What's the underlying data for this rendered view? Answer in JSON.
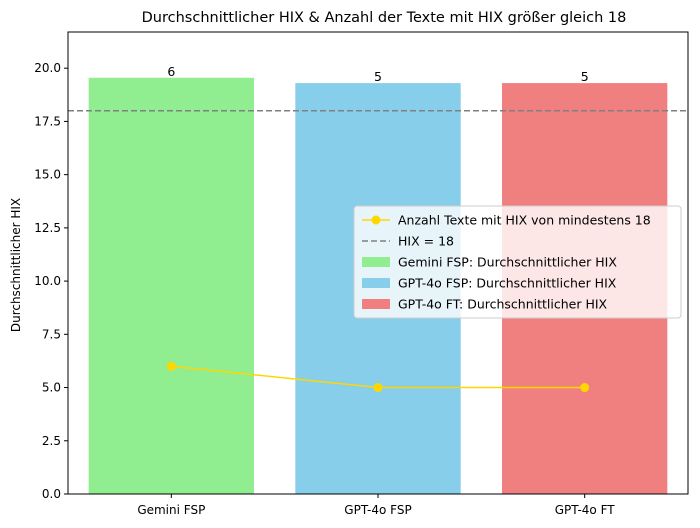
{
  "chart_data": {
    "type": "bar",
    "title": "Durchschnittlicher HIX & Anzahl der Texte mit HIX größer gleich 18",
    "xlabel": "",
    "ylabel": "Durchschnittlicher HIX",
    "ylim": [
      0,
      21.7
    ],
    "yticks": [
      0.0,
      2.5,
      5.0,
      7.5,
      10.0,
      12.5,
      15.0,
      17.5,
      20.0
    ],
    "ytick_labels": [
      "0.0",
      "2.5",
      "5.0",
      "7.5",
      "10.0",
      "12.5",
      "15.0",
      "17.5",
      "20.0"
    ],
    "categories": [
      "Gemini FSP",
      "GPT-4o FSP",
      "GPT-4o FT"
    ],
    "series": [
      {
        "name": "Gemini FSP: Durchschnittlicher HIX",
        "kind": "bar",
        "category": "Gemini FSP",
        "value": 19.55,
        "label": "6",
        "color": "#90ee90"
      },
      {
        "name": "GPT-4o FSP: Durchschnittlicher HIX",
        "kind": "bar",
        "category": "GPT-4o FSP",
        "value": 19.3,
        "label": "5",
        "color": "#87ceeb"
      },
      {
        "name": "GPT-4o FT: Durchschnittlicher HIX",
        "kind": "bar",
        "category": "GPT-4o FT",
        "value": 19.3,
        "label": "5",
        "color": "#f08080"
      },
      {
        "name": "Anzahl Texte mit HIX von mindestens 18",
        "kind": "line",
        "values": [
          6,
          5,
          5
        ],
        "color": "#ffd700"
      }
    ],
    "reference_line": {
      "name": "HIX = 18",
      "value": 18,
      "color": "#808080",
      "style": "dashed"
    },
    "legend": {
      "placement": "center-right",
      "entries": [
        "Anzahl Texte mit HIX von mindestens 18",
        "HIX = 18",
        "Gemini FSP: Durchschnittlicher HIX",
        "GPT-4o FSP: Durchschnittlicher HIX",
        "GPT-4o FT: Durchschnittlicher HIX"
      ]
    },
    "grid": false
  }
}
